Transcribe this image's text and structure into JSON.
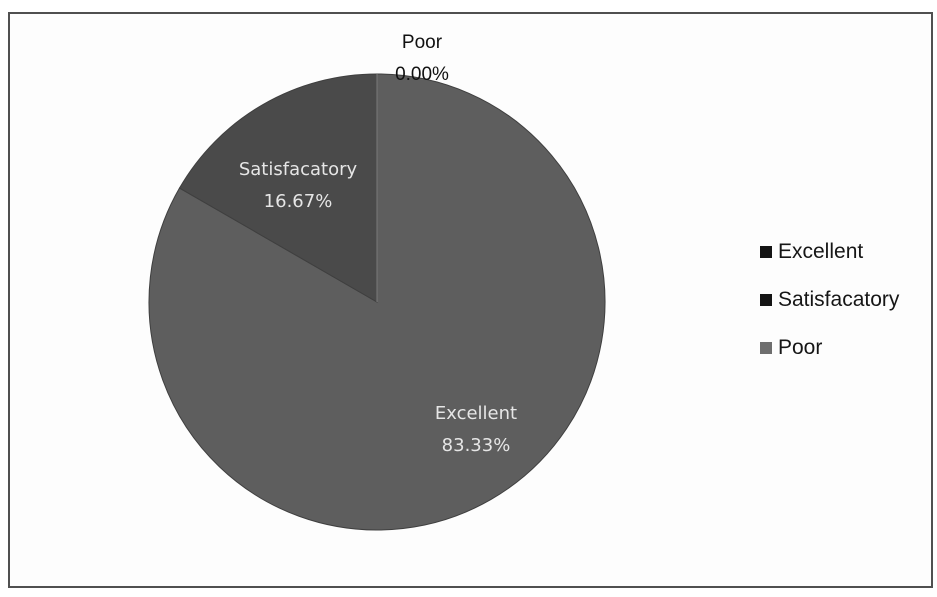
{
  "chart_data": {
    "type": "pie",
    "categories": [
      "Excellent",
      "Satisfacatory",
      "Poor"
    ],
    "values": [
      83.33,
      16.67,
      0.0
    ],
    "data_labels": [
      {
        "category": "Excellent",
        "value": "83.33%"
      },
      {
        "category": "Satisfacatory",
        "value": "16.67%"
      },
      {
        "category": "Poor",
        "value": "0.00%"
      }
    ],
    "legend": {
      "placement": "right",
      "entries": [
        "Excellent",
        "Satisfacatory",
        "Poor"
      ]
    },
    "colors": {
      "Excellent": "#5e5e5e",
      "Satisfacatory": "#4a4a4a",
      "Poor": "#7a7a7a"
    }
  }
}
